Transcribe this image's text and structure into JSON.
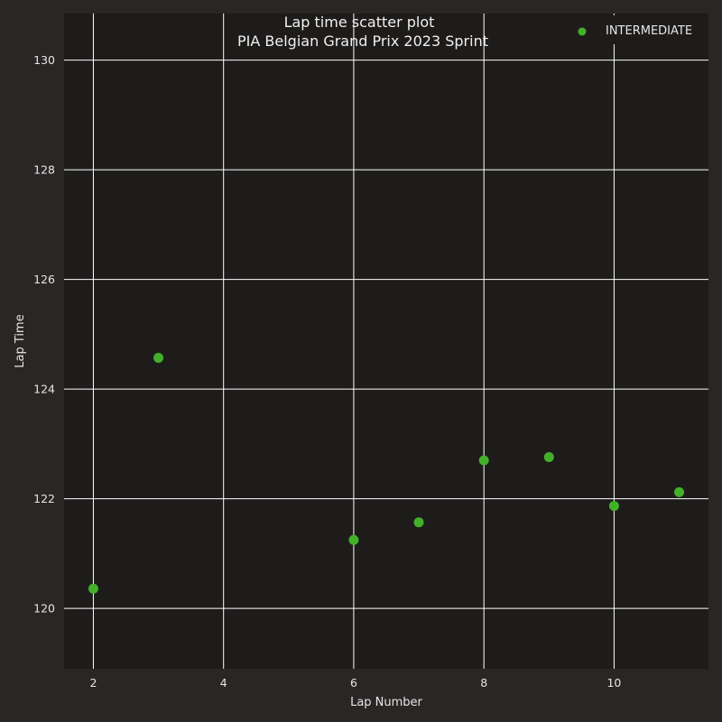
{
  "chart_data": {
    "type": "scatter",
    "title": "Lap time scatter plot",
    "subtitle": "PIA Belgian Grand Prix 2023 Sprint",
    "xlabel": "Lap Number",
    "ylabel": "Lap Time",
    "xlim": [
      1.55,
      11.45
    ],
    "ylim": [
      118.9,
      130.85
    ],
    "xticks": [
      2,
      4,
      6,
      8,
      10
    ],
    "yticks": [
      120,
      122,
      124,
      126,
      128,
      130
    ],
    "grid": true,
    "legend_position": "top-right",
    "series": [
      {
        "name": "INTERMEDIATE",
        "color": "#43b02a",
        "points": [
          {
            "x": 2,
            "y": 120.36
          },
          {
            "x": 3,
            "y": 124.57
          },
          {
            "x": 6,
            "y": 121.25
          },
          {
            "x": 7,
            "y": 121.57
          },
          {
            "x": 8,
            "y": 122.7
          },
          {
            "x": 9,
            "y": 122.76
          },
          {
            "x": 10,
            "y": 121.87
          },
          {
            "x": 11,
            "y": 122.12
          }
        ]
      }
    ]
  },
  "colors": {
    "page_background": "#292625",
    "plot_background": "#1e1c1b",
    "grid": "#ffffff",
    "text": "#e6e6e6"
  }
}
